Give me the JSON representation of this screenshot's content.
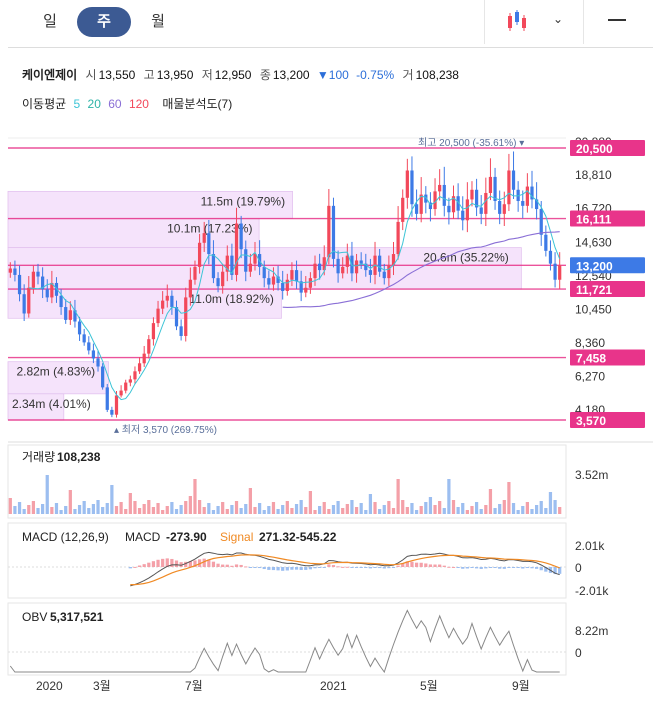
{
  "tabs": [
    "일",
    "주",
    "월"
  ],
  "active_tab": "주",
  "stock": {
    "name": "케이엔제이",
    "open_label": "시",
    "open": "13,550",
    "high_label": "고",
    "high": "13,950",
    "low_label": "저",
    "low": "12,950",
    "close_label": "종",
    "close": "13,200",
    "change": "▼100",
    "change_pct": "-0.75%",
    "volume_label": "거",
    "volume": "108,238"
  },
  "ma_legend": {
    "label": "이동평균",
    "p5": "5",
    "p20": "20",
    "p60": "60",
    "p120": "120",
    "profile": "매물분석도(7)"
  },
  "colors": {
    "up": "#f2485a",
    "down": "#3d7ae6",
    "level": "#e8348a",
    "ma5": "#3cc4d6",
    "ma60": "#8a6fd6",
    "profile": "#f5e3fb",
    "macd_signal": "#f08a24"
  },
  "price_axis": {
    "ticks": [
      "20,880",
      "18,810",
      "16,720",
      "14,630",
      "12,540",
      "10,450",
      "8,360",
      "6,270",
      "4,180"
    ]
  },
  "price_levels": [
    {
      "label": "20,500",
      "value": 20500
    },
    {
      "label": "16,111",
      "value": 16111
    },
    {
      "label": "13,200",
      "value": 13200,
      "current": true
    },
    {
      "label": "11,721",
      "value": 11721
    },
    {
      "label": "7,458",
      "value": 7458
    },
    {
      "label": "3,570",
      "value": 3570
    }
  ],
  "highest_label": "최고 20,500 (-35.61%)",
  "lowest_label": "최저 3,570 (269.75%)",
  "volume_profile": [
    {
      "label": "11.5m (19.79%)",
      "lo": 16111,
      "hi": 17800,
      "frac": 0.51
    },
    {
      "label": "10.1m (17.23%)",
      "lo": 14300,
      "hi": 16111,
      "frac": 0.45
    },
    {
      "label": "20.6m (35.22%)",
      "lo": 11721,
      "hi": 14300,
      "frac": 0.92
    },
    {
      "label": "11.0m (18.92%)",
      "lo": 9900,
      "hi": 11721,
      "frac": 0.49
    },
    {
      "label": "2.82m (4.83%)",
      "lo": 5200,
      "hi": 7200,
      "frac": 0.18
    },
    {
      "label": "2.34m (4.01%)",
      "lo": 3570,
      "hi": 5200,
      "frac": 0.1
    }
  ],
  "volume_panel": {
    "label": "거래량",
    "value": "108,238",
    "axis_max": "3.52m"
  },
  "macd_panel": {
    "label": "MACD (12,26,9)",
    "macd_label": "MACD",
    "macd_value": "-273.90",
    "signal_label": "Signal",
    "signal_value": "271.32-545.22",
    "axis_top": "2.01k",
    "axis_mid": "0",
    "axis_bottom": "-2.01k"
  },
  "obv_panel": {
    "label": "OBV",
    "value": "5,317,521",
    "axis_top": "8.22m",
    "axis_mid": "0"
  },
  "x_axis": [
    "2020",
    "3월",
    "7월",
    "2021",
    "5월",
    "9월"
  ]
}
